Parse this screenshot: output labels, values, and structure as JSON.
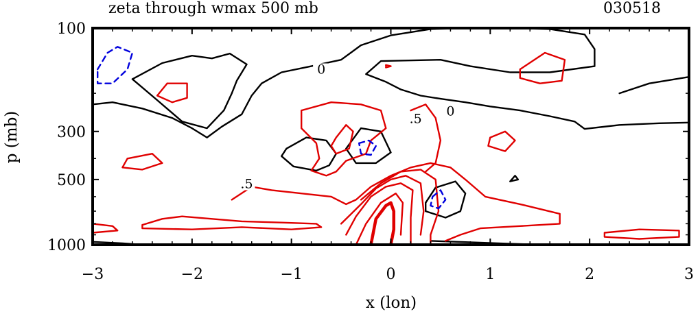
{
  "chart_data": {
    "type": "contour",
    "title": "zeta through wmax 500 mb",
    "date_label": "030518",
    "xlabel": "x (lon)",
    "ylabel": "p (mb)",
    "xlim": [
      -3,
      3
    ],
    "ylim": [
      100,
      1000
    ],
    "y_scale": "log",
    "y_reversed": true,
    "x_ticks": [
      "−3",
      "−2",
      "−1",
      "0",
      "1",
      "2",
      "3"
    ],
    "x_tick_values": [
      -3,
      -2,
      -1,
      0,
      1,
      2,
      3
    ],
    "y_ticks": [
      "100",
      "300",
      "500",
      "1000"
    ],
    "y_tick_values": [
      100,
      300,
      500,
      1000
    ],
    "contour_labels": [
      {
        "text": "0",
        "x": -0.7,
        "p": 160
      },
      {
        "text": "0",
        "x": 0.6,
        "p": 250
      },
      {
        "text": ".5",
        "x": 0.25,
        "p": 270
      },
      {
        "text": ".5",
        "x": -1.45,
        "p": 540
      }
    ],
    "series": [
      {
        "level": "0",
        "color": "#000000",
        "style": "solid",
        "paths": [
          [
            [
              -3.0,
              225
            ],
            [
              -2.8,
              220
            ],
            [
              -2.5,
              235
            ],
            [
              -2.2,
              260
            ],
            [
              -2.0,
              290
            ],
            [
              -1.85,
              320
            ],
            [
              -1.7,
              285
            ],
            [
              -1.5,
              250
            ],
            [
              -1.4,
              205
            ],
            [
              -1.3,
              180
            ],
            [
              -1.1,
              160
            ],
            [
              -0.8,
              150
            ],
            [
              -0.5,
              140
            ],
            [
              -0.3,
              120
            ],
            [
              0.0,
              108
            ],
            [
              0.4,
              101
            ],
            [
              0.8,
              100
            ],
            [
              1.2,
              100
            ],
            [
              1.6,
              101
            ],
            [
              1.95,
              107
            ],
            [
              2.05,
              125
            ],
            [
              2.05,
              150
            ],
            [
              1.6,
              160
            ],
            [
              1.2,
              160
            ],
            [
              0.8,
              150
            ],
            [
              0.5,
              140
            ],
            [
              -0.1,
              142
            ],
            [
              -0.25,
              163
            ],
            [
              -0.05,
              177
            ],
            [
              0.1,
              192
            ],
            [
              0.3,
              205
            ],
            [
              0.5,
              212
            ],
            [
              0.75,
              220
            ],
            [
              1.0,
              230
            ],
            [
              1.3,
              240
            ],
            [
              1.6,
              255
            ],
            [
              1.85,
              270
            ],
            [
              1.95,
              292
            ],
            [
              2.3,
              280
            ],
            [
              2.7,
              275
            ],
            [
              3.0,
              273
            ]
          ],
          [
            [
              -2.6,
              172
            ],
            [
              -2.3,
              145
            ],
            [
              -2.0,
              134
            ],
            [
              -1.8,
              138
            ],
            [
              -1.62,
              131
            ],
            [
              -1.45,
              147
            ],
            [
              -1.55,
              175
            ],
            [
              -1.6,
              200
            ],
            [
              -1.68,
              240
            ],
            [
              -1.85,
              290
            ],
            [
              -2.1,
              270
            ],
            [
              -2.35,
              215
            ],
            [
              -2.6,
              172
            ]
          ],
          [
            [
              -1.05,
              360
            ],
            [
              -0.85,
              320
            ],
            [
              -0.65,
              330
            ],
            [
              -0.55,
              380
            ],
            [
              -0.62,
              430
            ],
            [
              -0.75,
              455
            ],
            [
              -0.98,
              435
            ],
            [
              -1.1,
              390
            ],
            [
              -1.05,
              360
            ]
          ],
          [
            [
              -0.45,
              360
            ],
            [
              -0.3,
              290
            ],
            [
              -0.1,
              300
            ],
            [
              0.0,
              375
            ],
            [
              -0.15,
              420
            ],
            [
              -0.35,
              420
            ],
            [
              -0.45,
              360
            ]
          ],
          [
            [
              0.35,
              640
            ],
            [
              0.45,
              545
            ],
            [
              0.65,
              510
            ],
            [
              0.75,
              580
            ],
            [
              0.7,
              700
            ],
            [
              0.55,
              750
            ],
            [
              0.35,
              700
            ],
            [
              0.35,
              640
            ]
          ],
          [
            [
              2.3,
              200
            ],
            [
              2.6,
              180
            ],
            [
              3.0,
              168
            ]
          ],
          [
            [
              1.2,
              510
            ],
            [
              1.25,
              480
            ],
            [
              1.28,
              500
            ],
            [
              1.2,
              510
            ]
          ],
          [
            [
              -3.0,
              970
            ],
            [
              -2.7,
              985
            ],
            [
              -2.5,
              1000
            ]
          ],
          [
            [
              0.4,
              960
            ],
            [
              0.8,
              975
            ],
            [
              1.2,
              990
            ],
            [
              1.5,
              1000
            ]
          ]
        ]
      },
      {
        "level": "0.5 / positive",
        "color": "#e00000",
        "style": "solid",
        "paths": [
          [
            [
              -2.25,
              180
            ],
            [
              -2.05,
              180
            ],
            [
              -2.05,
              210
            ],
            [
              -2.2,
              220
            ],
            [
              -2.35,
              205
            ],
            [
              -2.25,
              180
            ]
          ],
          [
            [
              -2.65,
              400
            ],
            [
              -2.4,
              380
            ],
            [
              -2.3,
              420
            ],
            [
              -2.5,
              450
            ],
            [
              -2.7,
              440
            ],
            [
              -2.65,
              400
            ]
          ],
          [
            [
              -0.9,
              240
            ],
            [
              -0.6,
              220
            ],
            [
              -0.3,
              225
            ],
            [
              -0.1,
              240
            ],
            [
              -0.05,
              290
            ],
            [
              -0.2,
              330
            ],
            [
              -0.25,
              380
            ],
            [
              -0.45,
              410
            ],
            [
              -0.55,
              460
            ],
            [
              -0.65,
              480
            ],
            [
              -0.8,
              455
            ],
            [
              -0.72,
              400
            ],
            [
              -0.75,
              340
            ],
            [
              -0.9,
              290
            ],
            [
              -0.9,
              240
            ]
          ],
          [
            [
              -0.55,
              320
            ],
            [
              -0.45,
              280
            ],
            [
              -0.38,
              300
            ],
            [
              -0.42,
              360
            ],
            [
              -0.55,
              380
            ],
            [
              -0.6,
              350
            ],
            [
              -0.55,
              320
            ]
          ],
          [
            [
              -1.6,
              620
            ],
            [
              -1.4,
              540
            ],
            [
              -1.2,
              560
            ],
            [
              -0.9,
              580
            ],
            [
              -0.6,
              600
            ],
            [
              -0.45,
              650
            ],
            [
              -0.35,
              620
            ],
            [
              -0.2,
              540
            ],
            [
              0.0,
              480
            ],
            [
              0.2,
              440
            ],
            [
              0.4,
              420
            ],
            [
              0.6,
              440
            ],
            [
              0.75,
              500
            ],
            [
              0.95,
              600
            ],
            [
              1.3,
              650
            ],
            [
              1.7,
              720
            ],
            [
              1.7,
              800
            ],
            [
              1.3,
              820
            ],
            [
              0.9,
              840
            ],
            [
              0.7,
              900
            ],
            [
              0.55,
              960
            ]
          ],
          [
            [
              -2.5,
              810
            ],
            [
              -2.3,
              760
            ],
            [
              -2.1,
              740
            ],
            [
              -1.8,
              760
            ],
            [
              -1.5,
              780
            ],
            [
              -1.1,
              790
            ],
            [
              -0.75,
              800
            ],
            [
              -0.7,
              830
            ],
            [
              -1.0,
              850
            ],
            [
              -1.5,
              830
            ],
            [
              -2.0,
              850
            ],
            [
              -2.5,
              840
            ],
            [
              -2.5,
              810
            ]
          ],
          [
            [
              -3.0,
              800
            ],
            [
              -2.8,
              820
            ],
            [
              -2.75,
              860
            ],
            [
              -3.0,
              880
            ]
          ],
          [
            [
              -0.3,
              620
            ],
            [
              -0.1,
              520
            ],
            [
              0.1,
              460
            ],
            [
              0.3,
              450
            ],
            [
              0.45,
              500
            ],
            [
              0.48,
              700
            ],
            [
              0.4,
              900
            ],
            [
              0.4,
              1000
            ]
          ],
          [
            [
              -0.5,
              800
            ],
            [
              -0.3,
              650
            ],
            [
              -0.15,
              550
            ],
            [
              0.0,
              500
            ],
            [
              0.15,
              480
            ],
            [
              0.3,
              520
            ],
            [
              0.33,
              700
            ],
            [
              0.3,
              900
            ]
          ],
          [
            [
              -0.45,
              900
            ],
            [
              -0.35,
              740
            ],
            [
              -0.2,
              600
            ],
            [
              -0.05,
              540
            ],
            [
              0.1,
              520
            ],
            [
              0.22,
              560
            ],
            [
              0.2,
              750
            ],
            [
              0.2,
              1000
            ]
          ],
          [
            [
              -0.35,
              1000
            ],
            [
              -0.25,
              800
            ],
            [
              -0.1,
              640
            ],
            [
              0.05,
              580
            ],
            [
              0.12,
              640
            ],
            [
              0.1,
              900
            ]
          ],
          [
            [
              0.2,
              240
            ],
            [
              0.35,
              225
            ],
            [
              0.45,
              260
            ],
            [
              0.5,
              330
            ],
            [
              0.45,
              420
            ],
            [
              0.35,
              460
            ]
          ],
          [
            [
              1.0,
              320
            ],
            [
              1.15,
              300
            ],
            [
              1.25,
              330
            ],
            [
              1.15,
              370
            ],
            [
              0.98,
              350
            ],
            [
              1.0,
              320
            ]
          ],
          [
            [
              1.3,
              155
            ],
            [
              1.55,
              130
            ],
            [
              1.75,
              140
            ],
            [
              1.72,
              175
            ],
            [
              1.5,
              180
            ],
            [
              1.3,
              170
            ],
            [
              1.3,
              155
            ]
          ],
          [
            [
              2.15,
              880
            ],
            [
              2.5,
              850
            ],
            [
              2.9,
              860
            ],
            [
              2.9,
              920
            ],
            [
              2.5,
              940
            ],
            [
              2.15,
              920
            ],
            [
              2.15,
              880
            ]
          ],
          [
            [
              -0.05,
              150
            ],
            [
              -0.05,
              148
            ],
            [
              0.0,
              150
            ],
            [
              -0.05,
              152
            ]
          ]
        ],
        "thick_paths": [
          [
            [
              -0.2,
              1000
            ],
            [
              -0.15,
              760
            ],
            [
              -0.05,
              660
            ],
            [
              0.0,
              640
            ],
            [
              0.03,
              700
            ],
            [
              0.03,
              850
            ],
            [
              0.0,
              1000
            ]
          ]
        ]
      },
      {
        "level": "negative",
        "color": "#0000dd",
        "style": "dashed",
        "paths": [
          [
            [
              -2.95,
              155
            ],
            [
              -2.85,
              130
            ],
            [
              -2.75,
              122
            ],
            [
              -2.6,
              130
            ],
            [
              -2.65,
              155
            ],
            [
              -2.8,
              180
            ],
            [
              -2.95,
              180
            ],
            [
              -2.95,
              155
            ]
          ],
          [
            [
              -0.32,
              340
            ],
            [
              -0.22,
              330
            ],
            [
              -0.15,
              350
            ],
            [
              -0.2,
              385
            ],
            [
              -0.3,
              380
            ],
            [
              -0.32,
              340
            ]
          ],
          [
            [
              0.42,
              600
            ],
            [
              0.5,
              560
            ],
            [
              0.55,
              620
            ],
            [
              0.48,
              680
            ],
            [
              0.4,
              660
            ],
            [
              0.42,
              600
            ]
          ]
        ]
      }
    ]
  }
}
